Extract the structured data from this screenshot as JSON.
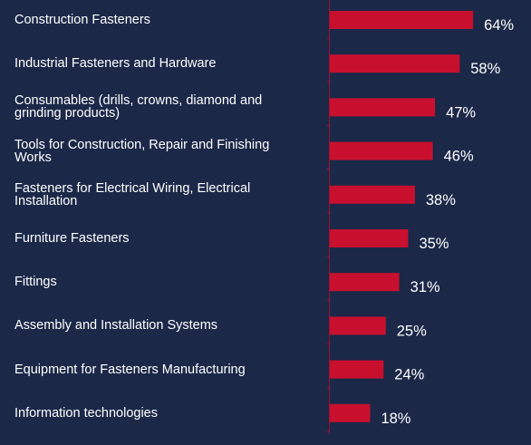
{
  "chart_data": {
    "type": "bar",
    "orientation": "horizontal",
    "color": "#c8102e",
    "categories": [
      "Construction Fasteners",
      "Industrial Fasteners and Hardware",
      "Consumables (drills, crowns, diamond and grinding products)",
      "Tools for Construction, Repair and Finishing Works",
      "Fasteners for Electrical Wiring, Electrical Installation",
      "Furniture Fasteners",
      "Fittings",
      "Assembly and Installation Systems",
      "Equipment for Fasteners Manufacturing",
      "Information technologies"
    ],
    "values": [
      64,
      58,
      47,
      46,
      38,
      35,
      31,
      25,
      24,
      18
    ],
    "value_labels": [
      "64%",
      "58%",
      "47%",
      "46%",
      "38%",
      "35%",
      "31%",
      "25%",
      "24%",
      "18%"
    ]
  }
}
